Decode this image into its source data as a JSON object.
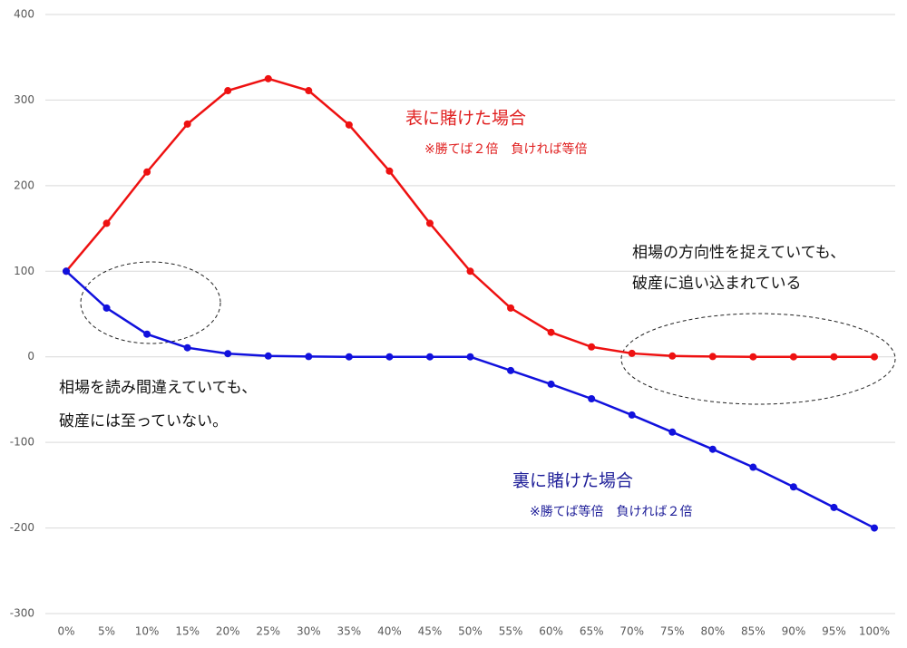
{
  "chart_data": {
    "type": "line",
    "categories": [
      "0%",
      "5%",
      "10%",
      "15%",
      "20%",
      "25%",
      "30%",
      "35%",
      "40%",
      "45%",
      "50%",
      "55%",
      "60%",
      "65%",
      "70%",
      "75%",
      "80%",
      "85%",
      "90%",
      "95%",
      "100%"
    ],
    "series": [
      {
        "name": "表に賭けた場合",
        "color": "#ee1111",
        "values": [
          100,
          156,
          216,
          272,
          311,
          325,
          311,
          271,
          217,
          156,
          100,
          57,
          28.6,
          11.6,
          4,
          1,
          0.3,
          0,
          0,
          0,
          0
        ]
      },
      {
        "name": "裏に賭けた場合",
        "color": "#1111dd",
        "values": [
          100,
          57,
          26.5,
          10.6,
          3.7,
          1,
          0.3,
          0,
          0,
          0,
          0,
          -16,
          -32,
          -49,
          -68,
          -88,
          -108,
          -129,
          -152,
          -176,
          -200
        ]
      }
    ],
    "annotations": [
      "※勝てば２倍　負ければ等倍",
      "相場の方向性を捉えていても、",
      "破産に追い込まれている",
      "相場を読み間違えていても、",
      "破産には至っていない。",
      "※勝てば等倍　負ければ２倍"
    ],
    "ylim": [
      -300,
      400
    ],
    "yticks": [
      -300,
      -200,
      -100,
      0,
      100,
      200,
      300,
      400
    ],
    "grid": true
  }
}
